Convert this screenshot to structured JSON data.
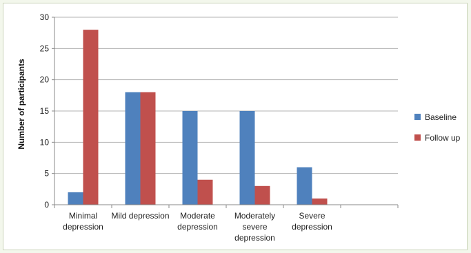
{
  "chart_data": {
    "type": "bar",
    "title": "",
    "xlabel": "",
    "ylabel": "Number of participants",
    "ylim": [
      0,
      30
    ],
    "yticks": [
      0,
      5,
      10,
      15,
      20,
      25,
      30
    ],
    "grid": true,
    "legend_position": "right",
    "categories": [
      [
        "Minimal",
        "depression"
      ],
      [
        "Mild depression"
      ],
      [
        "Moderate",
        "depression"
      ],
      [
        "Moderately",
        "severe",
        "depression"
      ],
      [
        "Severe",
        "depression"
      ]
    ],
    "series": [
      {
        "name": "Baseline",
        "color": "#4f81bd",
        "values": [
          2,
          18,
          15,
          15,
          6
        ]
      },
      {
        "name": "Follow up",
        "color": "#c0504d",
        "values": [
          28,
          18,
          4,
          3,
          1
        ]
      }
    ]
  }
}
